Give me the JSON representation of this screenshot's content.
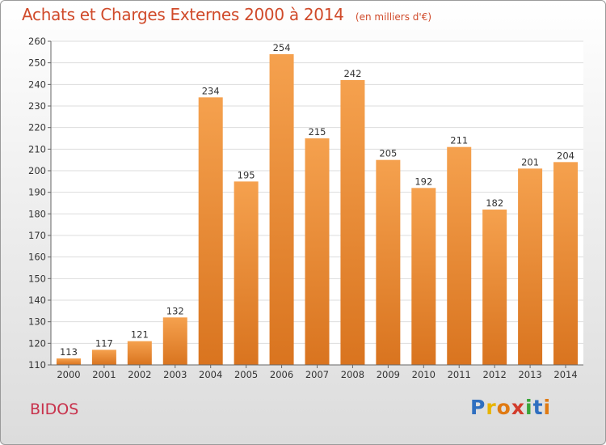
{
  "header": {
    "title": "Achats et Charges Externes 2000 à 2014",
    "unit_note": "(en milliers d'€)"
  },
  "footer": {
    "place": "BIDOS",
    "logo_text": [
      "P",
      "r",
      "o",
      "x",
      "i",
      "t",
      "i"
    ]
  },
  "chart_data": {
    "type": "bar",
    "title": "Achats et Charges Externes 2000 à 2014",
    "subtitle": "(en milliers d'€)",
    "xlabel": "",
    "ylabel": "",
    "categories": [
      "2000",
      "2001",
      "2002",
      "2003",
      "2004",
      "2005",
      "2006",
      "2007",
      "2008",
      "2009",
      "2010",
      "2011",
      "2012",
      "2013",
      "2014"
    ],
    "values": [
      113,
      117,
      121,
      132,
      234,
      195,
      254,
      215,
      242,
      205,
      192,
      211,
      182,
      201,
      204
    ],
    "ylim": [
      110,
      260
    ],
    "yticks": [
      110,
      120,
      130,
      140,
      150,
      160,
      170,
      180,
      190,
      200,
      210,
      220,
      230,
      240,
      250,
      260
    ],
    "grid": "horizontal",
    "bar_color_top": "#f5a14e",
    "bar_color_bottom": "#d9741f"
  }
}
